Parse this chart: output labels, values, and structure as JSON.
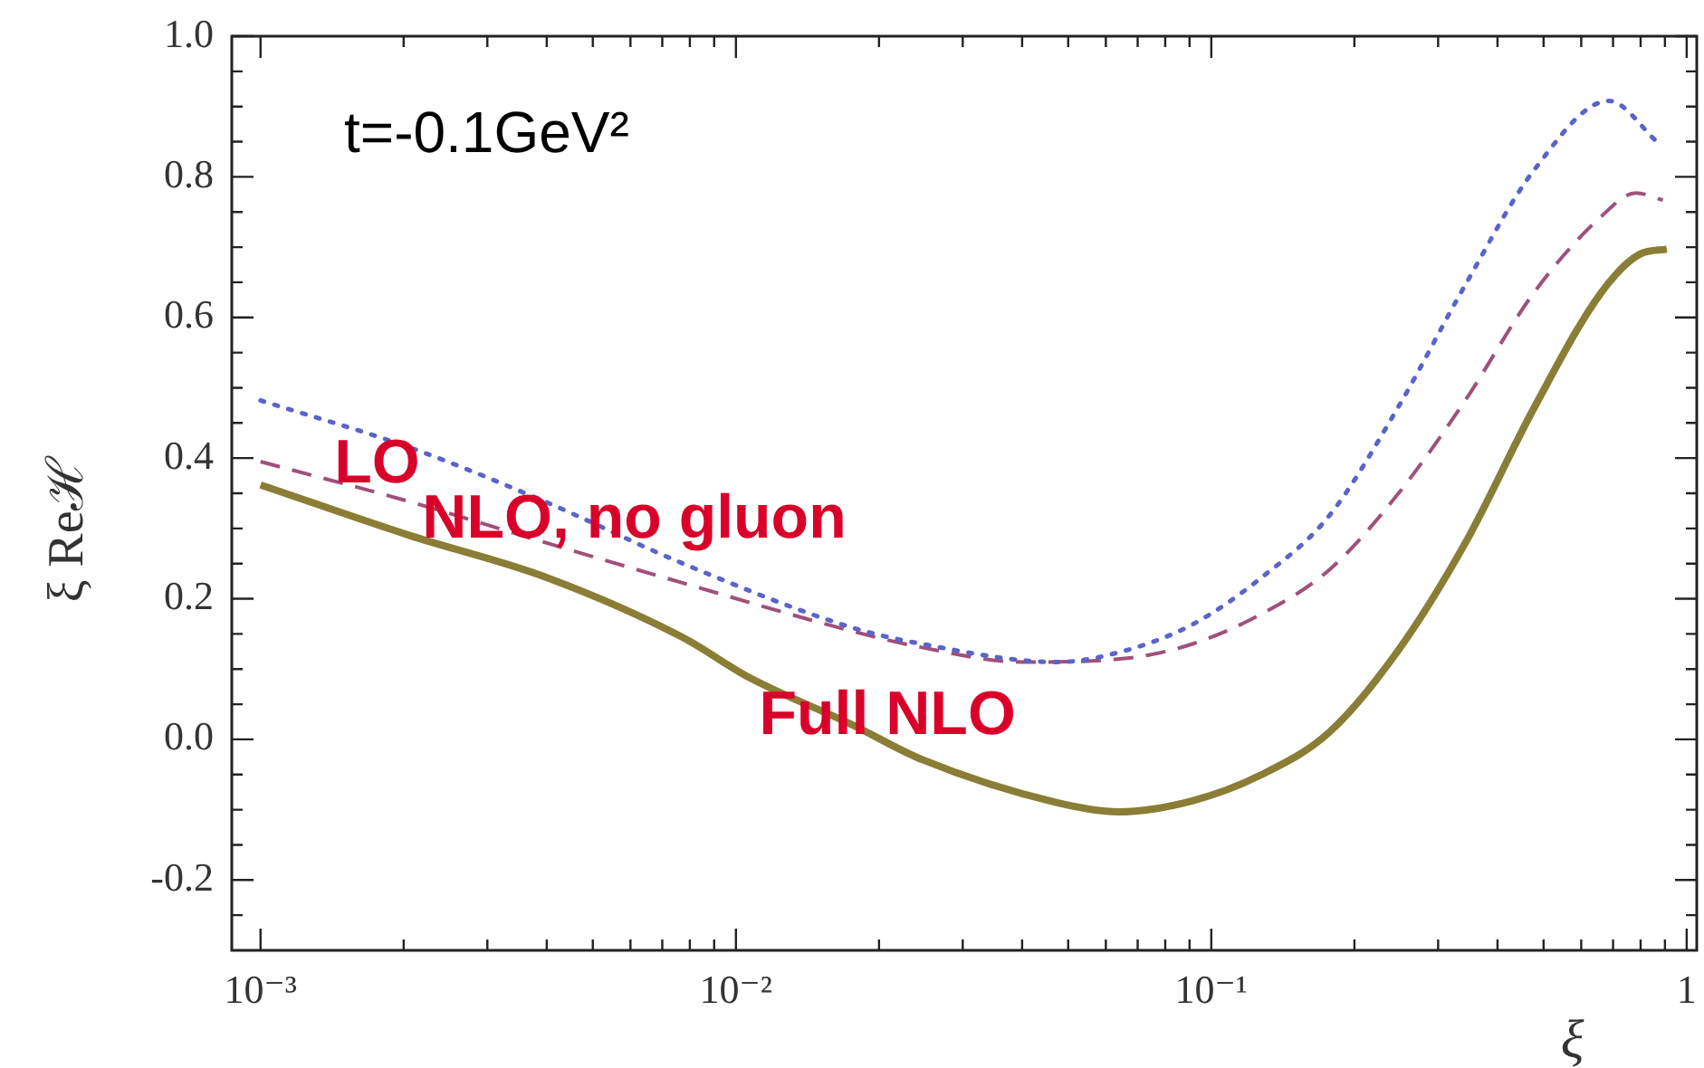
{
  "chart_data": {
    "type": "line",
    "xlabel": "ξ",
    "ylabel": "ξ Reℋ",
    "annotations": [
      "t=-0.1GeV²"
    ],
    "log": "x",
    "legend": false,
    "marker": "none",
    "xlim": [
      0.00087,
      1.05
    ],
    "ylim": [
      -0.3,
      1.0
    ],
    "xticks": [
      {
        "value": 0.001,
        "label": "10⁻³"
      },
      {
        "value": 0.002,
        "label": null
      },
      {
        "value": 0.003,
        "label": null
      },
      {
        "value": 0.004,
        "label": null
      },
      {
        "value": 0.005,
        "label": null
      },
      {
        "value": 0.006,
        "label": null
      },
      {
        "value": 0.007,
        "label": null
      },
      {
        "value": 0.008,
        "label": null
      },
      {
        "value": 0.009,
        "label": null
      },
      {
        "value": 0.01,
        "label": "10⁻²"
      },
      {
        "value": 0.02,
        "label": null
      },
      {
        "value": 0.03,
        "label": null
      },
      {
        "value": 0.04,
        "label": null
      },
      {
        "value": 0.05,
        "label": null
      },
      {
        "value": 0.06,
        "label": null
      },
      {
        "value": 0.07,
        "label": null
      },
      {
        "value": 0.08,
        "label": null
      },
      {
        "value": 0.09,
        "label": null
      },
      {
        "value": 0.1,
        "label": "10⁻¹"
      },
      {
        "value": 0.2,
        "label": null
      },
      {
        "value": 0.3,
        "label": null
      },
      {
        "value": 0.4,
        "label": null
      },
      {
        "value": 0.5,
        "label": null
      },
      {
        "value": 0.6,
        "label": null
      },
      {
        "value": 0.7,
        "label": null
      },
      {
        "value": 0.8,
        "label": null
      },
      {
        "value": 0.9,
        "label": null
      },
      1
    ],
    "yticks": [
      {
        "value": -0.25,
        "label": null
      },
      {
        "value": -0.2,
        "label": "-0.2"
      },
      {
        "value": -0.15,
        "label": null
      },
      {
        "value": -0.1,
        "label": null
      },
      {
        "value": -0.05,
        "label": null
      },
      {
        "value": 0,
        "label": "0.0"
      },
      {
        "value": 0.05,
        "label": null
      },
      {
        "value": 0.1,
        "label": null
      },
      {
        "value": 0.15,
        "label": null
      },
      {
        "value": 0.2,
        "label": "0.2"
      },
      {
        "value": 0.25,
        "label": null
      },
      {
        "value": 0.3,
        "label": null
      },
      {
        "value": 0.35,
        "label": null
      },
      {
        "value": 0.4,
        "label": "0.4"
      },
      {
        "value": 0.45,
        "label": null
      },
      {
        "value": 0.5,
        "label": null
      },
      {
        "value": 0.55,
        "label": null
      },
      {
        "value": 0.6,
        "label": "0.6"
      },
      {
        "value": 0.65,
        "label": null
      },
      {
        "value": 0.7,
        "label": null
      },
      {
        "value": 0.75,
        "label": null
      },
      {
        "value": 0.8,
        "label": "0.8"
      },
      {
        "value": 0.85,
        "label": null
      },
      {
        "value": 0.9,
        "label": null
      },
      {
        "value": 0.95,
        "label": null
      },
      {
        "value": 1.0,
        "label": "1.0"
      }
    ],
    "series": [
      {
        "name": "LO",
        "color": "#5a64c8",
        "line_style": "dotted",
        "x": [
          0.001,
          0.00206,
          0.00397,
          0.00768,
          0.01754,
          0.0245,
          0.0474,
          0.0657,
          0.0916,
          0.128,
          0.177,
          0.247,
          0.342,
          0.478,
          0.686,
          0.869
        ],
        "values": [
          0.482,
          0.415,
          0.338,
          0.251,
          0.159,
          0.136,
          0.11,
          0.126,
          0.164,
          0.231,
          0.318,
          0.472,
          0.646,
          0.81,
          0.908,
          0.849
        ]
      },
      {
        "name": "NLO, no gluon",
        "color": "#a0507a",
        "line_style": "dashed",
        "x": [
          0.001,
          0.00206,
          0.00397,
          0.00768,
          0.01754,
          0.0245,
          0.0401,
          0.0657,
          0.0916,
          0.128,
          0.177,
          0.247,
          0.342,
          0.478,
          0.662,
          0.782,
          0.891
        ],
        "values": [
          0.395,
          0.338,
          0.28,
          0.223,
          0.154,
          0.131,
          0.11,
          0.115,
          0.136,
          0.179,
          0.241,
          0.349,
          0.482,
          0.636,
          0.744,
          0.777,
          0.767
        ]
      },
      {
        "name": "Full NLO",
        "color": "#8a7d36",
        "line_style": "solid",
        "x": [
          0.001,
          0.00206,
          0.00397,
          0.00768,
          0.01073,
          0.01754,
          0.0245,
          0.0474,
          0.0638,
          0.0916,
          0.1268,
          0.177,
          0.247,
          0.342,
          0.478,
          0.662,
          0.797,
          0.908
        ],
        "values": [
          0.362,
          0.29,
          0.231,
          0.146,
          0.087,
          0.021,
          -0.028,
          -0.09,
          -0.103,
          -0.087,
          -0.051,
          0.01,
          0.126,
          0.279,
          0.472,
          0.636,
          0.69,
          0.697
        ]
      }
    ]
  }
}
